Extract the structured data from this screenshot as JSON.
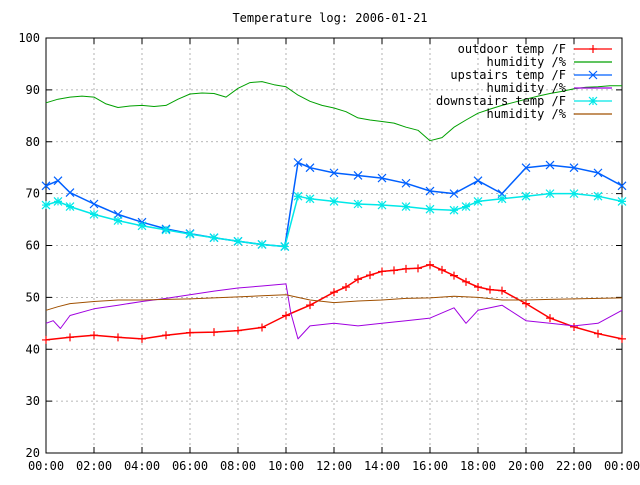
{
  "chart_data": {
    "type": "line",
    "title": "Temperature log: 2006-01-21",
    "xlabel": "",
    "ylabel": "",
    "xlim": [
      "00:00",
      "24:00"
    ],
    "ylim": [
      20,
      100
    ],
    "x_ticks": [
      "00:00",
      "02:00",
      "04:00",
      "06:00",
      "08:00",
      "10:00",
      "12:00",
      "14:00",
      "16:00",
      "18:00",
      "20:00",
      "22:00",
      "00:00"
    ],
    "y_ticks": [
      20,
      30,
      40,
      50,
      60,
      70,
      80,
      90,
      100
    ],
    "grid": true,
    "legend_position": "top-right",
    "series": [
      {
        "name": "outdoor temp /F",
        "color": "#ff0000",
        "marker": "plus",
        "x": [
          0,
          1,
          2,
          3,
          4,
          5,
          6,
          7,
          8,
          9,
          10,
          11,
          12,
          12.5,
          13,
          13.5,
          14,
          14.5,
          15,
          15.5,
          16,
          16.5,
          17,
          17.5,
          18,
          18.5,
          19,
          20,
          21,
          22,
          23,
          24
        ],
        "y": [
          41.8,
          42.3,
          42.7,
          42.3,
          42.0,
          42.7,
          43.2,
          43.3,
          43.6,
          44.2,
          46.5,
          48.5,
          51.0,
          52.0,
          53.5,
          54.3,
          55.0,
          55.2,
          55.5,
          55.6,
          56.3,
          55.3,
          54.2,
          53.0,
          52.0,
          51.5,
          51.3,
          48.8,
          46.0,
          44.3,
          43.0,
          42.0
        ]
      },
      {
        "name": "humidity /%",
        "color": "#00a000",
        "marker": "none",
        "x": [
          0,
          0.5,
          1,
          1.5,
          2,
          2.5,
          3,
          3.5,
          4,
          4.5,
          5,
          5.5,
          6,
          6.5,
          7,
          7.5,
          8,
          8.5,
          9,
          9.5,
          10,
          10.5,
          11,
          11.5,
          12,
          12.5,
          13,
          13.5,
          14,
          14.5,
          15,
          15.5,
          16,
          16.5,
          17,
          17.5,
          18,
          18.5,
          19,
          19.5,
          20,
          20.5,
          21,
          21.5,
          22,
          22.5,
          23,
          23.5,
          24
        ],
        "y": [
          87.5,
          88.2,
          88.6,
          88.8,
          88.6,
          87.3,
          86.6,
          86.9,
          87.0,
          86.8,
          87.0,
          88.2,
          89.2,
          89.4,
          89.3,
          88.6,
          90.3,
          91.4,
          91.6,
          91.0,
          90.6,
          89.0,
          87.8,
          87.0,
          86.5,
          85.8,
          84.6,
          84.2,
          83.9,
          83.6,
          82.8,
          82.2,
          80.2,
          80.8,
          82.8,
          84.2,
          85.5,
          86.3,
          87.0,
          87.6,
          88.2,
          88.8,
          89.3,
          89.7,
          90.2,
          90.5,
          90.6,
          90.8,
          90.8
        ]
      },
      {
        "name": "upstairs temp /F",
        "color": "#0060ff",
        "marker": "x",
        "x": [
          0,
          0.5,
          1,
          2,
          3,
          4,
          5,
          6,
          7,
          8,
          9,
          9.95,
          10.5,
          11,
          12,
          13,
          14,
          15,
          16,
          17,
          18,
          19,
          20,
          21,
          22,
          23,
          24
        ],
        "y": [
          71.5,
          72.5,
          70.2,
          68.0,
          66.0,
          64.5,
          63.2,
          62.3,
          61.5,
          60.8,
          60.2,
          59.8,
          76.0,
          75.0,
          74.0,
          73.5,
          73.0,
          72.0,
          70.5,
          70.0,
          72.5,
          70.0,
          75.0,
          75.5,
          75.0,
          74.0,
          71.5
        ]
      },
      {
        "name": "humidity /%",
        "color": "#a000e0",
        "marker": "none",
        "x": [
          0,
          0.3,
          0.6,
          1,
          2,
          3,
          4,
          5,
          6,
          7,
          8,
          9,
          10,
          10.2,
          10.5,
          11,
          12,
          13,
          14,
          15,
          16,
          17,
          17.5,
          18,
          19,
          20,
          21,
          22,
          23,
          24
        ],
        "y": [
          45.0,
          45.5,
          44.0,
          46.5,
          47.8,
          48.5,
          49.2,
          49.8,
          50.5,
          51.2,
          51.8,
          52.2,
          52.6,
          47.0,
          42.0,
          44.5,
          45.0,
          44.5,
          45.0,
          45.5,
          46.0,
          48.0,
          45.0,
          47.5,
          48.5,
          45.5,
          45.0,
          44.5,
          45.0,
          47.5
        ]
      },
      {
        "name": "downstairs temp /F",
        "color": "#00e8e8",
        "marker": "star",
        "x": [
          0,
          0.5,
          1,
          2,
          3,
          4,
          5,
          6,
          7,
          8,
          9,
          9.95,
          10.5,
          11,
          12,
          13,
          14,
          15,
          16,
          17,
          17.5,
          18,
          19,
          20,
          21,
          22,
          23,
          24
        ],
        "y": [
          67.8,
          68.5,
          67.5,
          66.0,
          64.8,
          63.8,
          63.0,
          62.2,
          61.5,
          60.8,
          60.2,
          59.8,
          69.5,
          69.0,
          68.5,
          68.0,
          67.8,
          67.5,
          67.0,
          66.8,
          67.5,
          68.5,
          69.0,
          69.5,
          70.0,
          70.0,
          69.5,
          68.5
        ]
      },
      {
        "name": "humidity /%",
        "color": "#a05000",
        "marker": "none",
        "x": [
          0,
          0.5,
          1,
          2,
          3,
          4,
          5,
          6,
          7,
          8,
          9,
          10,
          11,
          12,
          13,
          14,
          15,
          16,
          17,
          18,
          19,
          20,
          21,
          22,
          23,
          24
        ],
        "y": [
          47.5,
          48.2,
          48.8,
          49.2,
          49.5,
          49.5,
          49.6,
          49.7,
          49.9,
          50.1,
          50.3,
          50.5,
          49.5,
          49.0,
          49.3,
          49.5,
          49.8,
          49.9,
          50.2,
          50.0,
          49.5,
          49.5,
          49.6,
          49.7,
          49.8,
          49.9
        ]
      }
    ]
  }
}
